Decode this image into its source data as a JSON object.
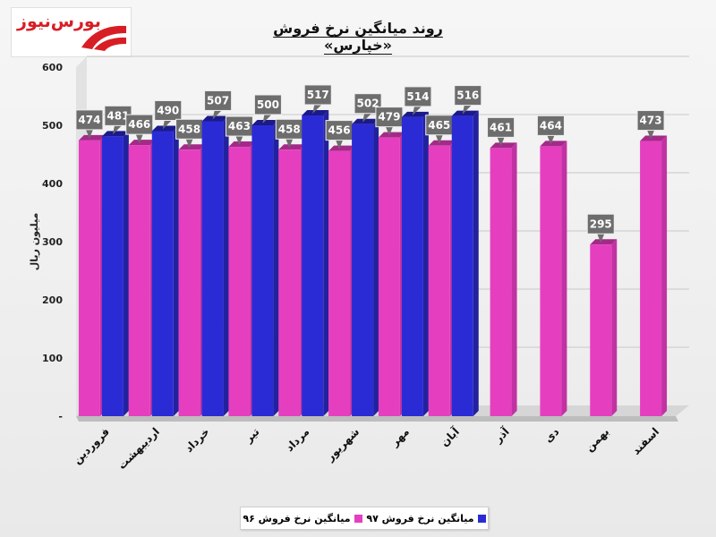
{
  "header": {
    "title": "روند میانگین نرخ فروش «خپارس»",
    "logo_text": "بورس‌نیوز",
    "logo_color": "#d81e25"
  },
  "chart_data": {
    "type": "bar",
    "title": "روند میانگین نرخ فروش «خپارس»",
    "ylabel": "میلیون ریال",
    "xlabel": "",
    "ylim": [
      0,
      600
    ],
    "yticks": [
      "-",
      "100",
      "200",
      "300",
      "400",
      "500",
      "600"
    ],
    "grid": true,
    "legend_position": "bottom",
    "categories": [
      "فروردین",
      "اردیبهشت",
      "خرداد",
      "تیر",
      "مرداد",
      "شهریور",
      "مهر",
      "آبان",
      "آذر",
      "دی",
      "بهمن",
      "اسفند"
    ],
    "series": [
      {
        "name": "میانگین نرخ فروش ۹۶",
        "color": "#e53fc0",
        "values": [
          474,
          466,
          458,
          463,
          458,
          456,
          479,
          465,
          461,
          464,
          295,
          473
        ]
      },
      {
        "name": "میانگین نرخ فروش ۹۷",
        "color": "#2b2bd6",
        "values": [
          481,
          490,
          507,
          500,
          517,
          502,
          514,
          516,
          null,
          null,
          null,
          null
        ]
      }
    ]
  }
}
